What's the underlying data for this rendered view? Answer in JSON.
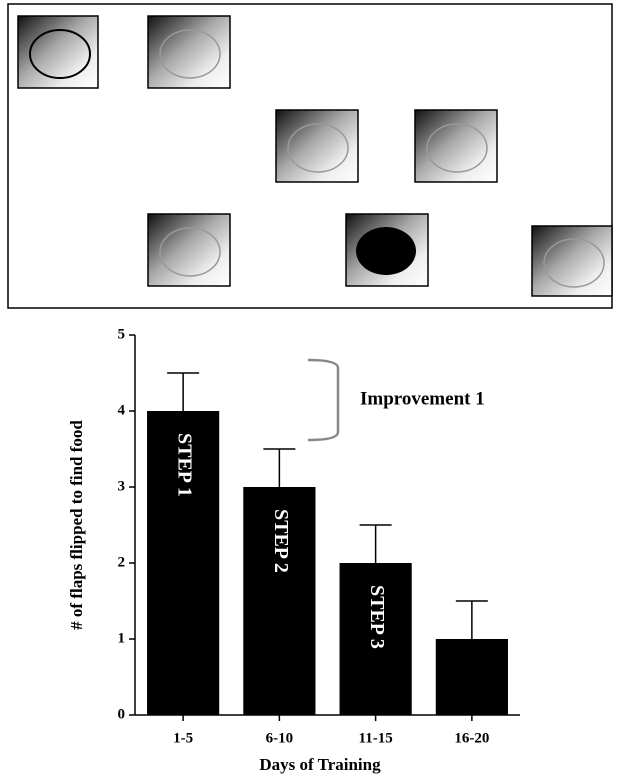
{
  "chart_data": {
    "type": "bar",
    "categories": [
      "1-5",
      "6-10",
      "11-15",
      "16-20"
    ],
    "values": [
      4,
      3,
      2,
      1
    ],
    "errors": [
      0.5,
      0.5,
      0.5,
      0.5
    ],
    "bar_labels": [
      "STEP 1",
      "STEP 2",
      "STEP 3",
      null
    ],
    "color": "#000000",
    "ylim": [
      0,
      5
    ],
    "yticks": [
      0,
      1,
      2,
      3,
      4,
      5
    ],
    "x_label": "Days of Training",
    "y_label": "# of flaps flipped to find food",
    "annotation": "Improvement 1"
  }
}
